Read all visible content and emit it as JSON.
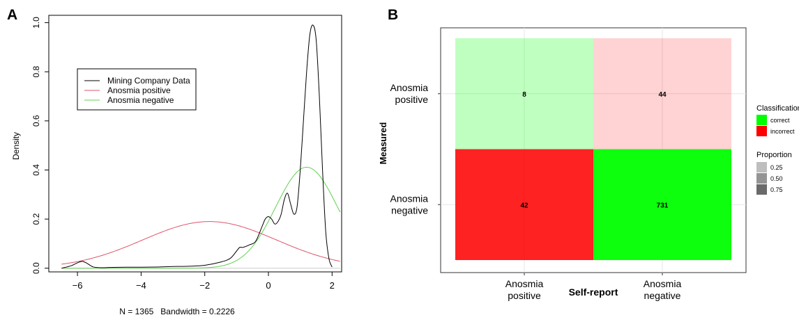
{
  "chart_data": [
    {
      "panel_label": "A",
      "type": "line",
      "xlabel": "N = 1365   Bandwidth = 0.2226",
      "ylabel": "Density",
      "xlim": [
        -6.9,
        2.3
      ],
      "ylim": [
        -0.015,
        1.03
      ],
      "xticks": [
        -6,
        -4,
        -2,
        0,
        2
      ],
      "yticks": [
        0.0,
        0.2,
        0.4,
        0.6,
        0.8,
        1.0
      ],
      "xtick_labels": [
        "−6",
        "−4",
        "−2",
        "0",
        "2"
      ],
      "ytick_labels": [
        "0.0",
        "0.2",
        "0.4",
        "0.6",
        "0.8",
        "1.0"
      ],
      "legend_position": "upper-left",
      "series": [
        {
          "name": "Mining Company Data",
          "color": "#000000",
          "x": [
            -6.5,
            -6.2,
            -6.0,
            -5.85,
            -5.7,
            -5.5,
            -5.2,
            -5.0,
            -4.5,
            -4.0,
            -3.5,
            -3.0,
            -2.5,
            -2.0,
            -1.5,
            -1.2,
            -1.0,
            -0.9,
            -0.8,
            -0.6,
            -0.4,
            -0.2,
            -0.1,
            0.0,
            0.1,
            0.2,
            0.3,
            0.4,
            0.5,
            0.6,
            0.7,
            0.8,
            0.9,
            1.0,
            1.1,
            1.2,
            1.3,
            1.4,
            1.5,
            1.6,
            1.7,
            1.8,
            1.9,
            2.0
          ],
          "y": [
            0.0,
            0.01,
            0.022,
            0.028,
            0.02,
            0.005,
            0.002,
            0.003,
            0.004,
            0.004,
            0.005,
            0.007,
            0.008,
            0.012,
            0.025,
            0.04,
            0.07,
            0.085,
            0.085,
            0.095,
            0.11,
            0.17,
            0.2,
            0.21,
            0.2,
            0.18,
            0.19,
            0.22,
            0.28,
            0.305,
            0.26,
            0.22,
            0.25,
            0.4,
            0.6,
            0.8,
            0.95,
            0.99,
            0.93,
            0.7,
            0.4,
            0.15,
            0.04,
            0.005
          ]
        },
        {
          "name": "Anosmia positive",
          "color": "#df536b",
          "mean": -1.85,
          "sd": 2.1
        },
        {
          "name": "Anosmia negative",
          "color": "#61d04f",
          "mean": 1.2,
          "sd": 0.97
        }
      ]
    },
    {
      "panel_label": "B",
      "type": "heatmap",
      "xlabel": "Self-report",
      "ylabel": "Measured",
      "x_categories": [
        "Anosmia positive",
        "Anosmia negative"
      ],
      "y_categories": [
        "Anosmia positive",
        "Anosmia negative"
      ],
      "cells": [
        {
          "x": "Anosmia positive",
          "y": "Anosmia positive",
          "count": 8,
          "classification": "correct",
          "proportion": 0.15
        },
        {
          "x": "Anosmia negative",
          "y": "Anosmia positive",
          "count": 44,
          "classification": "incorrect",
          "proportion": 0.06
        },
        {
          "x": "Anosmia positive",
          "y": "Anosmia negative",
          "count": 42,
          "classification": "incorrect",
          "proportion": 0.85
        },
        {
          "x": "Anosmia negative",
          "y": "Anosmia negative",
          "count": 731,
          "classification": "correct",
          "proportion": 0.94
        }
      ],
      "legend": {
        "classification_title": "Classification",
        "classification": [
          {
            "label": "correct",
            "color": "#00ff00"
          },
          {
            "label": "incorrect",
            "color": "#ff0000"
          }
        ],
        "proportion_title": "Proportion",
        "proportion": [
          {
            "label": "0.25",
            "value": 0.25
          },
          {
            "label": "0.50",
            "value": 0.5
          },
          {
            "label": "0.75",
            "value": 0.75
          }
        ]
      }
    }
  ]
}
